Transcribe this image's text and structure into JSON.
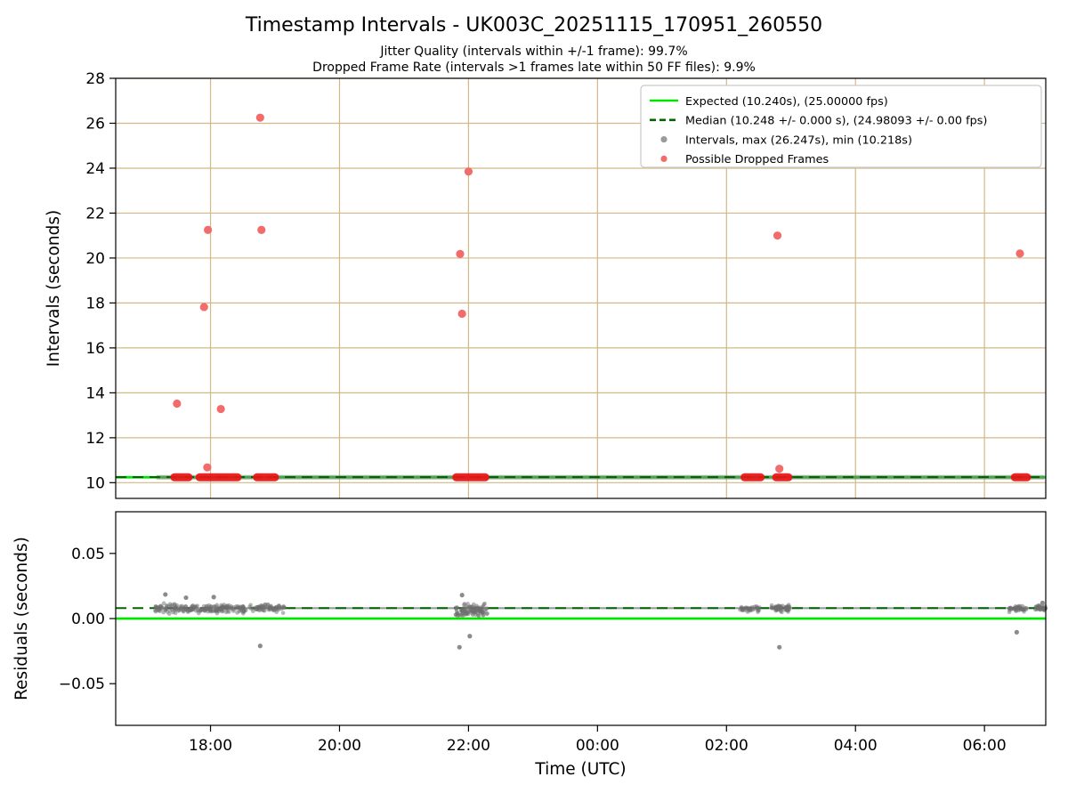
{
  "figure": {
    "title": "Timestamp Intervals - UK003C_20251115_170951_260550",
    "subtitle1": "Jitter Quality (intervals within +/-1 frame): 99.7%",
    "subtitle2": "Dropped Frame Rate (intervals >1 frames late within 50 FF files): 9.9%"
  },
  "chart_data": {
    "type": "scatter",
    "title": "Timestamp Intervals - UK003C_20251115_170951_260550",
    "subtitles": [
      "Jitter Quality (intervals within +/-1 frame): 99.7%",
      "Dropped Frame Rate (intervals >1 frames late within 50 FF files): 9.9%"
    ],
    "jitter_quality_pct": 99.7,
    "dropped_frame_rate_pct": 9.9,
    "colors": {
      "expected": "#00e400",
      "median": "#006400",
      "grid": "#d2b886",
      "intervals": "#9b9b9b",
      "dropped": "#f26c6c",
      "dropped_dense": "#ea1515",
      "frame": "#000000"
    },
    "x_axis": {
      "label": "Time (UTC)",
      "range_hours": [
        16.53,
        30.95
      ],
      "ticks": [
        {
          "hour": 18,
          "label": "18:00"
        },
        {
          "hour": 20,
          "label": "20:00"
        },
        {
          "hour": 22,
          "label": "22:00"
        },
        {
          "hour": 24,
          "label": "00:00"
        },
        {
          "hour": 26,
          "label": "02:00"
        },
        {
          "hour": 28,
          "label": "04:00"
        },
        {
          "hour": 30,
          "label": "06:00"
        }
      ]
    },
    "top_plot": {
      "ylabel": "Intervals (seconds)",
      "ylim": [
        9.3,
        28.0
      ],
      "grid": true,
      "yticks": [
        {
          "value": 10,
          "label": "10"
        },
        {
          "value": 12,
          "label": "12"
        },
        {
          "value": 14,
          "label": "14"
        },
        {
          "value": 16,
          "label": "16"
        },
        {
          "value": 18,
          "label": "18"
        },
        {
          "value": 20,
          "label": "20"
        },
        {
          "value": 22,
          "label": "22"
        },
        {
          "value": 24,
          "label": "24"
        },
        {
          "value": 26,
          "label": "26"
        },
        {
          "value": 28,
          "label": "28"
        }
      ],
      "expected_line": 10.24,
      "median_line": 10.248,
      "baseline_stream": {
        "start_hour": 17.16,
        "end_hour": 30.93,
        "value": 10.24
      },
      "dropped_segments": [
        [
          17.44,
          17.66
        ],
        [
          17.83,
          18.42
        ],
        [
          18.72,
          19.0
        ],
        [
          21.81,
          22.26
        ],
        [
          26.28,
          26.53
        ],
        [
          26.77,
          26.96
        ],
        [
          30.47,
          30.66
        ]
      ],
      "dropped_points": [
        [
          17.48,
          13.52
        ],
        [
          17.9,
          17.82
        ],
        [
          17.96,
          21.25
        ],
        [
          17.95,
          10.68
        ],
        [
          18.16,
          13.28
        ],
        [
          18.77,
          26.25
        ],
        [
          18.79,
          21.25
        ],
        [
          21.87,
          20.18
        ],
        [
          21.9,
          17.52
        ],
        [
          22.0,
          23.85
        ],
        [
          26.79,
          21.0
        ],
        [
          26.82,
          10.62
        ],
        [
          30.55,
          20.2
        ]
      ],
      "stats": {
        "max_interval_s": 26.247,
        "min_interval_s": 10.218
      }
    },
    "bottom_plot": {
      "ylabel": "Residuals (seconds)",
      "ylim": [
        -0.082,
        0.082
      ],
      "grid": false,
      "yticks": [
        {
          "value": -0.05,
          "label": "−0.05"
        },
        {
          "value": 0,
          "label": "0.00"
        },
        {
          "value": 0.05,
          "label": "0.05"
        }
      ],
      "expected_line": 0.0,
      "median_line": 0.008,
      "baseline_stream": {
        "start_hour": 17.16,
        "end_hour": 30.93,
        "value": 0.008
      },
      "clusters": [
        {
          "t0": 17.13,
          "t1": 17.48,
          "n": 50,
          "base": 0.008,
          "spread": 0.0055
        },
        {
          "t0": 17.48,
          "t1": 18.55,
          "n": 160,
          "base": 0.0075,
          "spread": 0.0042
        },
        {
          "t0": 18.6,
          "t1": 19.15,
          "n": 70,
          "base": 0.008,
          "spread": 0.0038
        },
        {
          "t0": 21.8,
          "t1": 22.3,
          "n": 110,
          "base": 0.006,
          "spread": 0.0065
        },
        {
          "t0": 26.2,
          "t1": 26.52,
          "n": 40,
          "base": 0.0075,
          "spread": 0.003
        },
        {
          "t0": 26.68,
          "t1": 26.98,
          "n": 55,
          "base": 0.008,
          "spread": 0.0038
        },
        {
          "t0": 30.38,
          "t1": 30.66,
          "n": 45,
          "base": 0.0075,
          "spread": 0.0035
        },
        {
          "t0": 30.78,
          "t1": 30.95,
          "n": 35,
          "base": 0.008,
          "spread": 0.003
        }
      ],
      "outlier_points": [
        [
          17.3,
          0.0185
        ],
        [
          17.62,
          0.016
        ],
        [
          18.05,
          0.0165
        ],
        [
          18.77,
          -0.021
        ],
        [
          21.86,
          -0.022
        ],
        [
          21.9,
          0.018
        ],
        [
          22.02,
          -0.0135
        ],
        [
          26.82,
          -0.022
        ],
        [
          30.5,
          -0.0105
        ],
        [
          30.9,
          0.012
        ]
      ]
    },
    "legend": {
      "entries": [
        {
          "type": "line",
          "dash": false,
          "color": "#00e400",
          "label": "Expected (10.240s), (25.00000 fps)"
        },
        {
          "type": "line",
          "dash": true,
          "color": "#006400",
          "label": "Median (10.248 +/- 0.000 s), (24.98093 +/- 0.00 fps)"
        },
        {
          "type": "dot",
          "dash": false,
          "color": "#9b9b9b",
          "label": "Intervals, max (26.247s), min (10.218s)"
        },
        {
          "type": "dot",
          "dash": false,
          "color": "#f26c6c",
          "label": "Possible Dropped Frames"
        }
      ]
    }
  }
}
